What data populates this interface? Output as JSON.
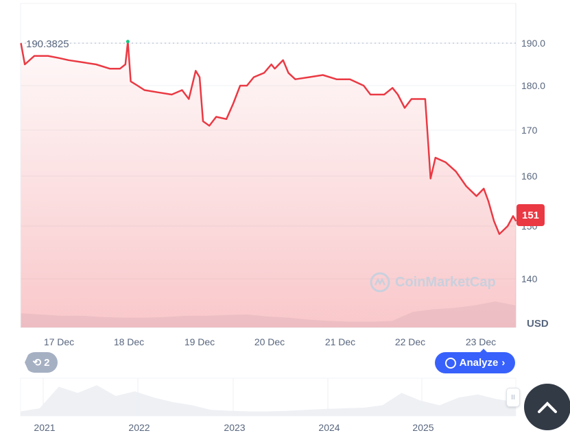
{
  "chart_data": {
    "type": "area",
    "ylim": [
      140,
      190
    ],
    "y_ticks": [
      "190.0",
      "180.0",
      "170",
      "160",
      "150",
      "140"
    ],
    "x_ticks": [
      "17 Dec",
      "18 Dec",
      "19 Dec",
      "20 Dec",
      "21 Dec",
      "22 Dec",
      "23 Dec"
    ],
    "unit_label": "USD",
    "high_label": "190.3825",
    "current_price_label": "151",
    "line_color": "#ea3943",
    "high_marker_color": "#16c784",
    "grid": true,
    "series": [
      {
        "x": [
          "16 Dec 11:00",
          "16 Dec 12:20",
          "16 Dec 15:35",
          "16 Dec 20:15",
          "17 Dec 00:00",
          "17 Dec 03:15",
          "17 Dec 08:00",
          "17 Dec 12:40",
          "17 Dec 17:20",
          "17 Dec 20:50",
          "17 Dec 22:40",
          "17 Dec 23:30",
          "18 Dec 00:30",
          "18 Dec 02:50",
          "18 Dec 05:10",
          "18 Dec 09:50",
          "18 Dec 14:30",
          "18 Dec 18:00",
          "18 Dec 20:20",
          "18 Dec 22:40",
          "19 Dec 00:00",
          "19 Dec 01:10",
          "19 Dec 03:20",
          "19 Dec 05:40",
          "19 Dec 09:10",
          "19 Dec 11:30",
          "19 Dec 13:50",
          "19 Dec 16:10",
          "19 Dec 18:30",
          "19 Dec 22:00",
          "20 Dec 00:30",
          "20 Dec 01:40",
          "20 Dec 04:30",
          "20 Dec 06:20",
          "20 Dec 08:40",
          "20 Dec 13:25",
          "20 Dec 18:05",
          "20 Dec 22:45",
          "21 Dec 03:20",
          "21 Dec 08:00",
          "21 Dec 10:20",
          "21 Dec 15:00",
          "21 Dec 17:50",
          "21 Dec 19:40",
          "21 Dec 22:00",
          "22 Dec 00:20",
          "22 Dec 05:00",
          "22 Dec 06:10",
          "22 Dec 06:50",
          "22 Dec 08:30",
          "22 Dec 12:00",
          "22 Dec 15:30",
          "22 Dec 19:00",
          "22 Dec 22:30",
          "23 Dec 01:00",
          "23 Dec 02:35",
          "23 Dec 04:30",
          "23 Dec 06:20",
          "23 Dec 09:10",
          "23 Dec 11:00",
          "23 Dec 12:00"
        ],
        "values": [
          190,
          185,
          187,
          187,
          186.5,
          186,
          185.5,
          185,
          184,
          184,
          185,
          190.38,
          181,
          180,
          179,
          178.5,
          178,
          179,
          177,
          183.5,
          182,
          172,
          171,
          173,
          172.5,
          176,
          180,
          180,
          182,
          183,
          185,
          184,
          186,
          183,
          181.5,
          182,
          182.5,
          181.5,
          181.5,
          180,
          178,
          178,
          179.5,
          178,
          175,
          177,
          177,
          166,
          159.5,
          164,
          163,
          161,
          158,
          156,
          157.5,
          155,
          151,
          148.5,
          150,
          152,
          151
        ]
      }
    ],
    "volume_relative": [
      0.55,
      0.5,
      0.45,
      0.45,
      0.4,
      0.38,
      0.38,
      0.4,
      0.45,
      0.45,
      0.48,
      0.5,
      0.42,
      0.38,
      0.3,
      0.25,
      0.22,
      0.22,
      0.25,
      0.6,
      0.7,
      0.75,
      0.85,
      1.0,
      0.85
    ],
    "navigator": {
      "year_labels": [
        "2021",
        "2022",
        "2023",
        "2024",
        "2025"
      ],
      "relative": [
        0.1,
        0.2,
        0.9,
        0.7,
        0.95,
        0.6,
        0.75,
        0.55,
        0.4,
        0.3,
        0.15,
        0.12,
        0.1,
        0.1,
        0.12,
        0.15,
        0.18,
        0.2,
        0.22,
        0.3,
        0.7,
        0.45,
        0.3,
        0.55,
        0.65,
        0.5,
        0.4
      ]
    }
  },
  "watermark": "CoinMarketCap",
  "history_button": {
    "count": "2"
  },
  "analyze_button": {
    "label": "Analyze",
    "chevron": "›"
  },
  "handle_glyph": "II"
}
